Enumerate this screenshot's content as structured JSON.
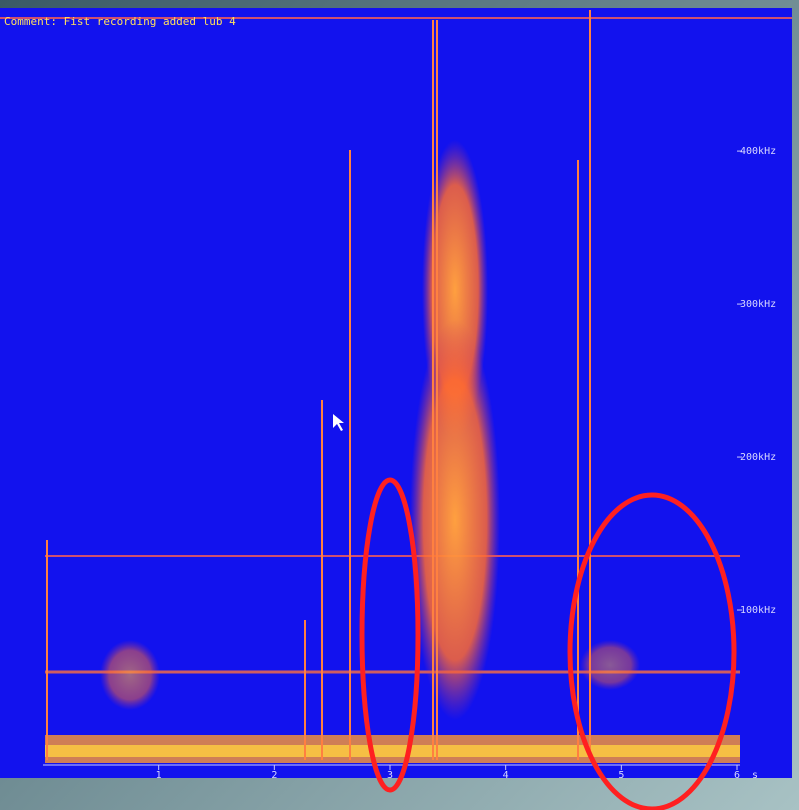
{
  "chart_data": {
    "type": "spectrogram",
    "comment": "Comment: Fist recording added lub 4",
    "x_label": "s",
    "xlim": [
      0,
      6
    ],
    "xticks": [
      1,
      2,
      3,
      4,
      5,
      6
    ],
    "ylim": [
      0,
      487
    ],
    "yticks": [
      {
        "value": 100,
        "label": "100kHz"
      },
      {
        "value": 200,
        "label": "200kHz"
      },
      {
        "value": 300,
        "label": "300kHz"
      },
      {
        "value": 400,
        "label": "400kHz"
      }
    ]
  }
}
